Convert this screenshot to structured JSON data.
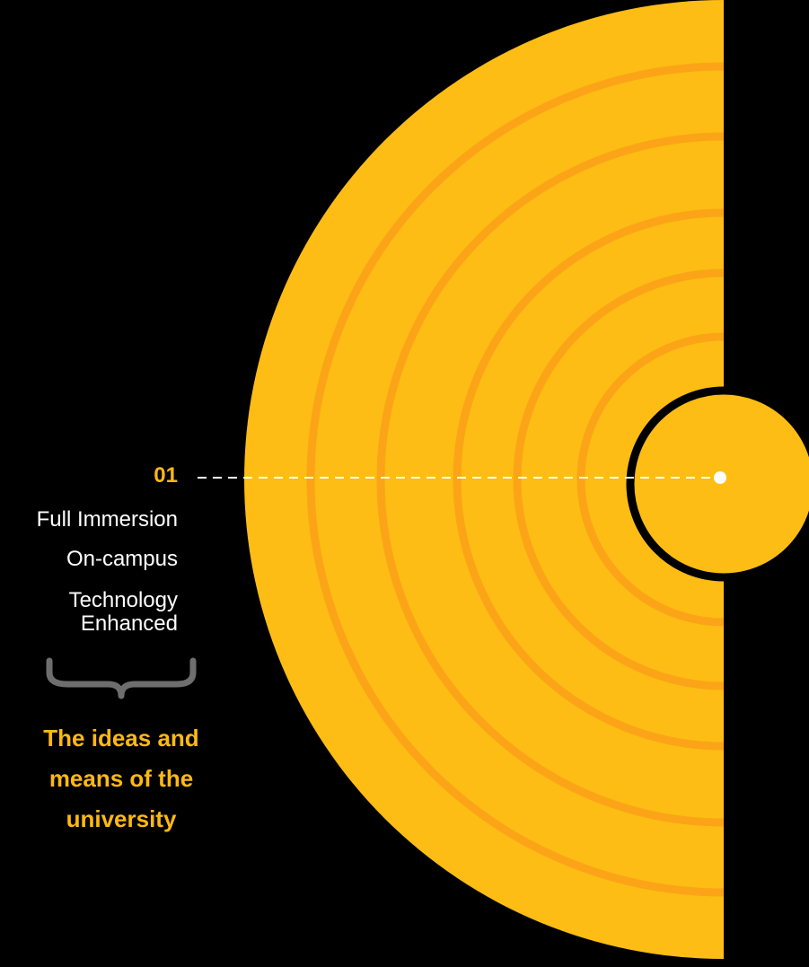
{
  "colors": {
    "background": "#000000",
    "disc": "#FDBD14",
    "ring": "#FCA417",
    "accent": "#FDB913",
    "text": "#FFFFFF",
    "brace": "#6E6E6E",
    "connector": "#FFFFFF"
  },
  "step": {
    "number": "01"
  },
  "options": {
    "full_immersion": "Full Immersion",
    "on_campus": "On-campus",
    "technology_line1": "Technology",
    "technology_line2": "Enhanced"
  },
  "summary": {
    "line1": "The ideas and",
    "line2": "means of the",
    "line3": "university"
  }
}
